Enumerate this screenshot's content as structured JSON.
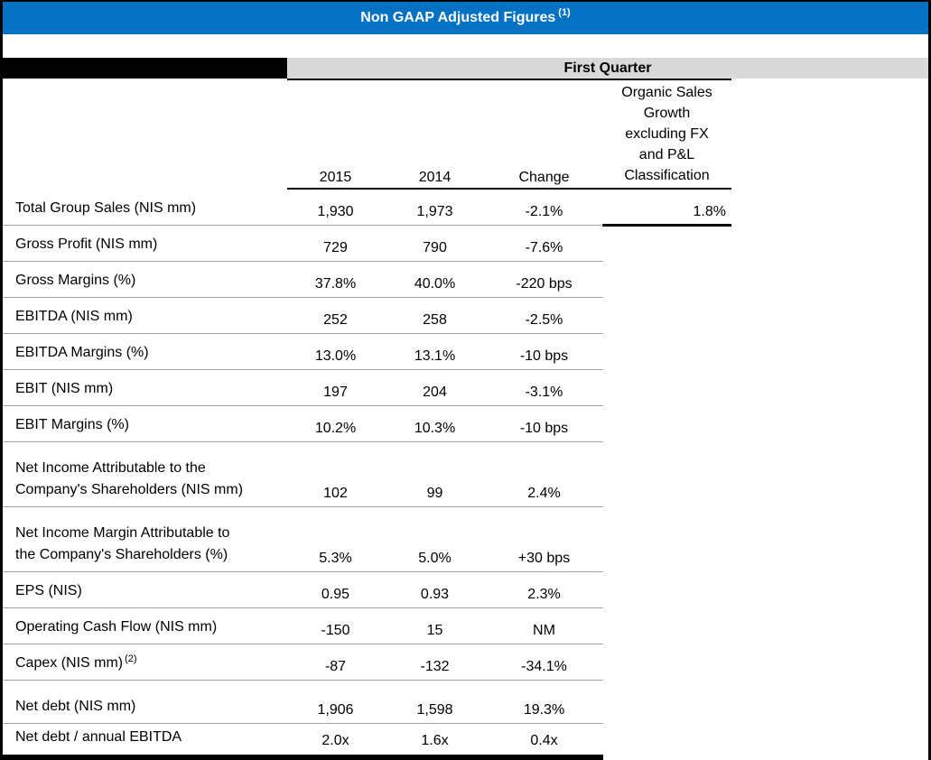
{
  "header": {
    "title": "Non GAAP Adjusted Figures",
    "footnote_ref": "(1)"
  },
  "colors": {
    "accent_blue": "#0472c2",
    "band_gray": "#d9d9d9",
    "separator_gray": "#a3a3a3",
    "bar_black": "#000000",
    "title_text": "#ffffff"
  },
  "table": {
    "group_header": "First Quarter",
    "columns": {
      "col_2015": "2015",
      "col_2014": "2014",
      "col_change": "Change",
      "col_organic": "Organic Sales\nGrowth\nexcluding FX\nand P&L\nClassification"
    },
    "rows": [
      {
        "label": "Total Group Sales (NIS mm)",
        "y2015": "1,930",
        "y2014": "1,973",
        "change": "-2.1%",
        "organic": "1.8%",
        "organic_underline": true
      },
      {
        "label": "Gross Profit (NIS mm)",
        "y2015": "729",
        "y2014": "790",
        "change": "-7.6%"
      },
      {
        "label": "Gross Margins (%)",
        "y2015": "37.8%",
        "y2014": "40.0%",
        "change": "-220 bps"
      },
      {
        "label": "EBITDA (NIS mm)",
        "y2015": "252",
        "y2014": "258",
        "change": "-2.5%"
      },
      {
        "label": "EBITDA Margins (%)",
        "y2015": "13.0%",
        "y2014": "13.1%",
        "change": "-10 bps"
      },
      {
        "label": "EBIT (NIS mm)",
        "y2015": "197",
        "y2014": "204",
        "change": "-3.1%"
      },
      {
        "label": "EBIT Margins (%)",
        "y2015": "10.2%",
        "y2014": "10.3%",
        "change": "-10 bps"
      },
      {
        "label": "Net Income Attributable to the\nCompany's Shareholders (NIS mm)",
        "y2015": "102",
        "y2014": "99",
        "change": "2.4%",
        "two_line": true
      },
      {
        "label": "Net Income Margin Attributable to\nthe Company's Shareholders (%)",
        "y2015": "5.3%",
        "y2014": "5.0%",
        "change": "+30 bps",
        "two_line": true
      },
      {
        "label": "EPS (NIS)",
        "y2015": "0.95",
        "y2014": "0.93",
        "change": "2.3%"
      },
      {
        "label": "Operating Cash Flow (NIS mm)",
        "y2015": "-150",
        "y2014": "15",
        "change": "NM"
      },
      {
        "label": "Capex (NIS mm)",
        "label_sup": "(2)",
        "y2015": "-87",
        "y2014": "-132",
        "change": "-34.1%"
      },
      {
        "label": "Net debt (NIS mm)",
        "y2015": "1,906",
        "y2014": "1,598",
        "change": "19.3%",
        "gap_before": true
      },
      {
        "label": "Net debt / annual EBITDA",
        "y2015": "2.0x",
        "y2014": "1.6x",
        "change": "0.4x",
        "last": true
      }
    ]
  }
}
